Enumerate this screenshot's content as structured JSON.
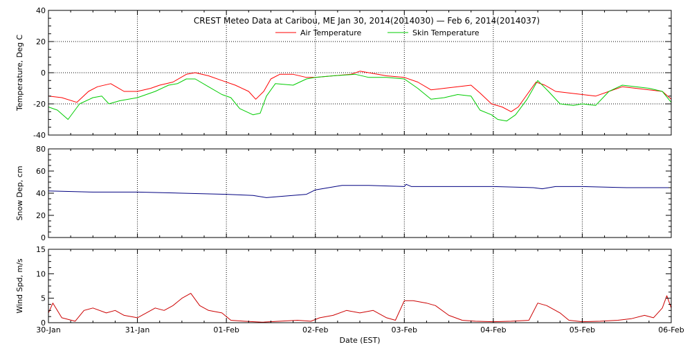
{
  "chart_data": {
    "type": "line",
    "title": "CREST Meteo Data at Caribou, ME   Jan 30, 2014(2014030) — Feb  6, 2014(2014037)",
    "xlabel": "Date (EST)",
    "x_ticks": [
      "30-Jan",
      "31-Jan",
      "01-Feb",
      "02-Feb",
      "03-Feb",
      "04-Feb",
      "05-Feb",
      "06-Feb"
    ],
    "x_range_days": [
      0,
      7
    ],
    "grid": "vertical dotted lines at each day; horizontal dotted lines on temperature panel",
    "legend": {
      "placement": "top-center",
      "entries": [
        {
          "name": "Air Temperature",
          "color": "#ff0000"
        },
        {
          "name": "Skin Temperature",
          "color": "#00cc00"
        }
      ]
    },
    "panels": [
      {
        "ylabel": "Temperature, Deg C",
        "ylim": [
          -40,
          40
        ],
        "yticks": [
          40,
          20,
          0,
          -20,
          -40
        ],
        "y_grid": [
          20,
          0,
          -20
        ],
        "series": [
          {
            "name": "Air Temperature",
            "color": "#ff0000",
            "points": [
              [
                0,
                -15
              ],
              [
                0.15,
                -16
              ],
              [
                0.32,
                -19
              ],
              [
                0.45,
                -12
              ],
              [
                0.55,
                -9
              ],
              [
                0.7,
                -7
              ],
              [
                0.85,
                -12
              ],
              [
                1.0,
                -12
              ],
              [
                1.15,
                -10
              ],
              [
                1.25,
                -8
              ],
              [
                1.4,
                -6
              ],
              [
                1.55,
                -1
              ],
              [
                1.65,
                0
              ],
              [
                1.8,
                -2
              ],
              [
                1.95,
                -5
              ],
              [
                2.1,
                -8
              ],
              [
                2.25,
                -12
              ],
              [
                2.33,
                -17
              ],
              [
                2.42,
                -12
              ],
              [
                2.5,
                -4
              ],
              [
                2.6,
                -1
              ],
              [
                2.75,
                -1
              ],
              [
                2.9,
                -3
              ],
              [
                3.0,
                -3
              ],
              [
                3.2,
                -2
              ],
              [
                3.4,
                -1
              ],
              [
                3.5,
                1
              ],
              [
                3.6,
                0
              ],
              [
                3.8,
                -2
              ],
              [
                4.0,
                -3
              ],
              [
                4.15,
                -6
              ],
              [
                4.3,
                -11
              ],
              [
                4.45,
                -10
              ],
              [
                4.6,
                -9
              ],
              [
                4.75,
                -8
              ],
              [
                4.85,
                -13
              ],
              [
                4.98,
                -20
              ],
              [
                5.1,
                -22
              ],
              [
                5.2,
                -25
              ],
              [
                5.28,
                -22
              ],
              [
                5.38,
                -14
              ],
              [
                5.48,
                -6
              ],
              [
                5.58,
                -8
              ],
              [
                5.7,
                -12
              ],
              [
                5.85,
                -13
              ],
              [
                6.0,
                -14
              ],
              [
                6.15,
                -15
              ],
              [
                6.3,
                -12
              ],
              [
                6.45,
                -9
              ],
              [
                6.6,
                -10
              ],
              [
                6.75,
                -11
              ],
              [
                6.9,
                -12
              ],
              [
                7.0,
                -17
              ]
            ]
          },
          {
            "name": "Skin Temperature",
            "color": "#00cc00",
            "points": [
              [
                0,
                -22
              ],
              [
                0.1,
                -24
              ],
              [
                0.22,
                -30
              ],
              [
                0.35,
                -20
              ],
              [
                0.5,
                -16
              ],
              [
                0.6,
                -15
              ],
              [
                0.68,
                -20
              ],
              [
                0.8,
                -18
              ],
              [
                1.0,
                -16
              ],
              [
                1.2,
                -12
              ],
              [
                1.35,
                -8
              ],
              [
                1.45,
                -7
              ],
              [
                1.55,
                -4
              ],
              [
                1.65,
                -4
              ],
              [
                1.8,
                -9
              ],
              [
                1.95,
                -14
              ],
              [
                2.05,
                -16
              ],
              [
                2.15,
                -23
              ],
              [
                2.3,
                -27
              ],
              [
                2.38,
                -26
              ],
              [
                2.45,
                -15
              ],
              [
                2.55,
                -7
              ],
              [
                2.75,
                -8
              ],
              [
                2.9,
                -4
              ],
              [
                3.0,
                -3
              ],
              [
                3.2,
                -2
              ],
              [
                3.45,
                -1
              ],
              [
                3.6,
                -3
              ],
              [
                3.8,
                -3
              ],
              [
                4.0,
                -4
              ],
              [
                4.15,
                -10
              ],
              [
                4.3,
                -17
              ],
              [
                4.45,
                -16
              ],
              [
                4.6,
                -14
              ],
              [
                4.75,
                -15
              ],
              [
                4.85,
                -24
              ],
              [
                4.98,
                -27
              ],
              [
                5.05,
                -30
              ],
              [
                5.15,
                -31
              ],
              [
                5.25,
                -27
              ],
              [
                5.38,
                -17
              ],
              [
                5.5,
                -5
              ],
              [
                5.62,
                -12
              ],
              [
                5.75,
                -20
              ],
              [
                5.9,
                -21
              ],
              [
                6.0,
                -20
              ],
              [
                6.15,
                -21
              ],
              [
                6.3,
                -12
              ],
              [
                6.45,
                -8
              ],
              [
                6.6,
                -9
              ],
              [
                6.75,
                -10
              ],
              [
                6.9,
                -12
              ],
              [
                7.0,
                -19
              ]
            ]
          }
        ]
      },
      {
        "ylabel": "Snow Dep, cm",
        "ylim": [
          0,
          80
        ],
        "yticks": [
          80,
          60,
          40,
          20,
          0
        ],
        "series": [
          {
            "name": "Snow Depth",
            "color": "#000080",
            "points": [
              [
                0,
                42
              ],
              [
                0.5,
                41
              ],
              [
                1.0,
                41
              ],
              [
                1.5,
                40
              ],
              [
                2.0,
                39
              ],
              [
                2.3,
                38
              ],
              [
                2.45,
                36
              ],
              [
                2.6,
                37
              ],
              [
                2.9,
                39
              ],
              [
                3.0,
                43
              ],
              [
                3.15,
                45
              ],
              [
                3.3,
                47
              ],
              [
                3.6,
                47
              ],
              [
                4.0,
                46
              ],
              [
                4.02,
                48
              ],
              [
                4.08,
                46
              ],
              [
                4.5,
                46
              ],
              [
                5.0,
                46
              ],
              [
                5.45,
                45
              ],
              [
                5.55,
                44
              ],
              [
                5.7,
                46
              ],
              [
                6.0,
                46
              ],
              [
                6.5,
                45
              ],
              [
                7.0,
                45
              ]
            ]
          }
        ]
      },
      {
        "ylabel": "Wind Spd, m/s",
        "ylim": [
          0,
          15
        ],
        "yticks": [
          15,
          10,
          5,
          0
        ],
        "series": [
          {
            "name": "Wind Speed",
            "color": "#cc0000",
            "points": [
              [
                0,
                2
              ],
              [
                0.05,
                4
              ],
              [
                0.15,
                1
              ],
              [
                0.3,
                0.3
              ],
              [
                0.4,
                2.5
              ],
              [
                0.5,
                3
              ],
              [
                0.65,
                2
              ],
              [
                0.75,
                2.5
              ],
              [
                0.85,
                1.5
              ],
              [
                1.0,
                1
              ],
              [
                1.1,
                2
              ],
              [
                1.2,
                3
              ],
              [
                1.3,
                2.5
              ],
              [
                1.4,
                3.5
              ],
              [
                1.5,
                5
              ],
              [
                1.6,
                6
              ],
              [
                1.7,
                3.5
              ],
              [
                1.8,
                2.5
              ],
              [
                1.95,
                2
              ],
              [
                2.05,
                0.5
              ],
              [
                2.2,
                0.3
              ],
              [
                2.4,
                0.1
              ],
              [
                2.6,
                0.3
              ],
              [
                2.8,
                0.5
              ],
              [
                2.95,
                0.3
              ],
              [
                3.05,
                1
              ],
              [
                3.2,
                1.5
              ],
              [
                3.35,
                2.5
              ],
              [
                3.5,
                2
              ],
              [
                3.65,
                2.5
              ],
              [
                3.8,
                1
              ],
              [
                3.9,
                0.5
              ],
              [
                4.0,
                4.5
              ],
              [
                4.1,
                4.5
              ],
              [
                4.25,
                4
              ],
              [
                4.35,
                3.5
              ],
              [
                4.5,
                1.5
              ],
              [
                4.65,
                0.5
              ],
              [
                4.8,
                0.3
              ],
              [
                5.0,
                0.2
              ],
              [
                5.2,
                0.3
              ],
              [
                5.4,
                0.5
              ],
              [
                5.5,
                4
              ],
              [
                5.6,
                3.5
              ],
              [
                5.75,
                2
              ],
              [
                5.85,
                0.5
              ],
              [
                6.0,
                0.2
              ],
              [
                6.2,
                0.3
              ],
              [
                6.4,
                0.5
              ],
              [
                6.55,
                0.8
              ],
              [
                6.7,
                1.5
              ],
              [
                6.8,
                1
              ],
              [
                6.9,
                3
              ],
              [
                6.95,
                5.5
              ],
              [
                7.0,
                3
              ]
            ]
          }
        ]
      }
    ]
  }
}
